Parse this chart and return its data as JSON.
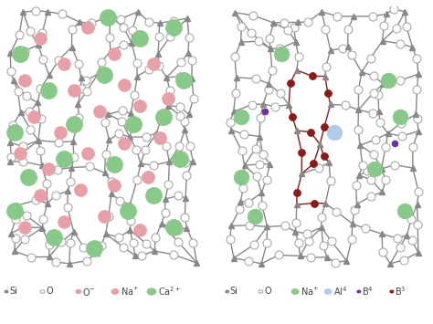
{
  "fig_width": 4.74,
  "fig_height": 3.55,
  "dpi": 100,
  "bg_color": "#ffffff",
  "text_color": "#444444",
  "font_size_legend": 7.0,
  "left_legend": [
    {
      "label": "Si",
      "fc": "#888888",
      "ec": "#888888",
      "r": 0.004,
      "sup": ""
    },
    {
      "label": "O",
      "fc": "#ffffff",
      "ec": "#aaaaaa",
      "r": 0.005,
      "sup": ""
    },
    {
      "label": "O",
      "fc": "#e8a0a8",
      "ec": "#e8a0a8",
      "r": 0.006,
      "sup": "−"
    },
    {
      "label": "Na",
      "fc": "#e8a0a8",
      "ec": "#e8a0a8",
      "r": 0.008,
      "sup": "+"
    },
    {
      "label": "Ca",
      "fc": "#88c888",
      "ec": "#88c888",
      "r": 0.01,
      "sup": "2+"
    }
  ],
  "right_legend": [
    {
      "label": "Si",
      "fc": "#888888",
      "ec": "#888888",
      "r": 0.004,
      "sup": ""
    },
    {
      "label": "O",
      "fc": "#ffffff",
      "ec": "#aaaaaa",
      "r": 0.005,
      "sup": ""
    },
    {
      "label": "Na",
      "fc": "#88c888",
      "ec": "#88c888",
      "r": 0.008,
      "sup": "+"
    },
    {
      "label": "Al",
      "fc": "#b0cce8",
      "ec": "#b0cce8",
      "r": 0.008,
      "sup": "4"
    },
    {
      "label": "B",
      "fc": "#7030a0",
      "ec": "#7030a0",
      "r": 0.004,
      "sup": "4"
    },
    {
      "label": "B",
      "fc": "#8b1a1a",
      "ec": "#8b1a1a",
      "r": 0.004,
      "sup": "3"
    }
  ]
}
